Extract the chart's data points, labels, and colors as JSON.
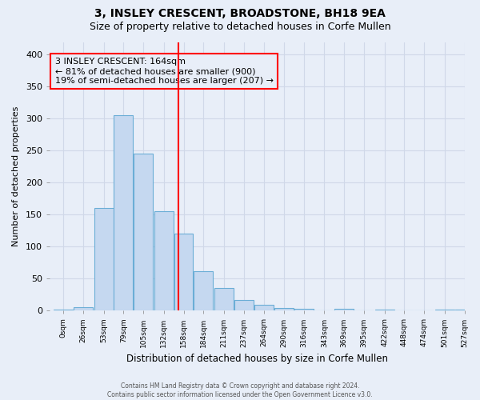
{
  "title1": "3, INSLEY CRESCENT, BROADSTONE, BH18 9EA",
  "title2": "Size of property relative to detached houses in Corfe Mullen",
  "xlabel": "Distribution of detached houses by size in Corfe Mullen",
  "ylabel": "Number of detached properties",
  "footer1": "Contains HM Land Registry data © Crown copyright and database right 2024.",
  "footer2": "Contains public sector information licensed under the Open Government Licence v3.0.",
  "bar_edges": [
    0,
    26,
    53,
    79,
    105,
    132,
    158,
    184,
    211,
    237,
    264,
    290,
    316,
    343,
    369,
    395,
    422,
    448,
    474,
    501,
    527
  ],
  "bar_heights": [
    2,
    5,
    160,
    305,
    245,
    155,
    120,
    62,
    35,
    16,
    9,
    4,
    3,
    0,
    3,
    0,
    2,
    0,
    0,
    2,
    2
  ],
  "bar_color": "#c5d8f0",
  "bar_edgecolor": "#6baed6",
  "vline_x": 164,
  "vline_color": "red",
  "annotation_text": "3 INSLEY CRESCENT: 164sqm\n← 81% of detached houses are smaller (900)\n19% of semi-detached houses are larger (207) →",
  "annotation_box_edgecolor": "red",
  "ylim": [
    0,
    420
  ],
  "yticks": [
    0,
    50,
    100,
    150,
    200,
    250,
    300,
    350,
    400
  ],
  "background_color": "#e8eef8",
  "grid_color": "#d0d8e8",
  "title_fontsize": 10,
  "subtitle_fontsize": 9,
  "annot_fontsize": 8
}
